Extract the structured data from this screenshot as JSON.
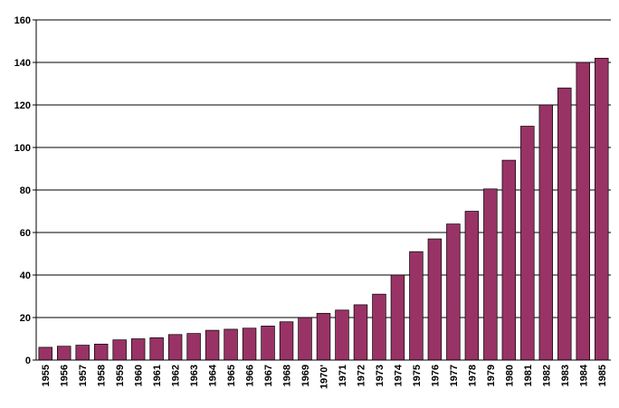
{
  "chart_data": {
    "type": "bar",
    "categories": [
      "1955",
      "1956",
      "1957",
      "1958",
      "1959",
      "1960",
      "1961",
      "1962",
      "1963",
      "1964",
      "1965",
      "1966",
      "1967",
      "1968",
      "1969",
      "1970'",
      "1971",
      "1972",
      "1973",
      "1974",
      "1975",
      "1976",
      "1977",
      "1978",
      "1979",
      "1980",
      "1981",
      "1982",
      "1983",
      "1984",
      "1985"
    ],
    "values": [
      6,
      6.5,
      7,
      7.5,
      9.5,
      10,
      10.5,
      12,
      12.5,
      14,
      14.5,
      15,
      16,
      18,
      20,
      22,
      23.5,
      26,
      31,
      40,
      51,
      57,
      64,
      70,
      80.5,
      94,
      110,
      120,
      128,
      140,
      142
    ],
    "title": "",
    "xlabel": "",
    "ylabel": "",
    "ylim": [
      0,
      160
    ],
    "yticks": [
      "0",
      "20",
      "40",
      "60",
      "80",
      "100",
      "120",
      "140",
      "160"
    ],
    "grid": true,
    "legend": "none",
    "bar_color": "#993366"
  }
}
